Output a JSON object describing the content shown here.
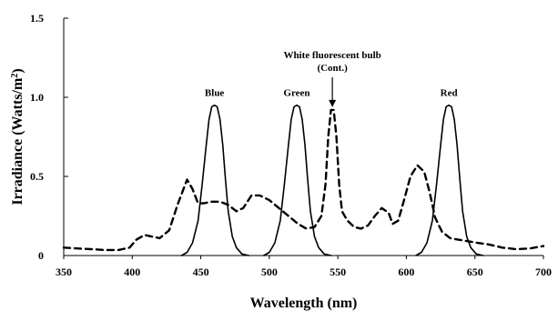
{
  "chart_data": {
    "type": "line",
    "title": "",
    "xlabel": "Wavelength (nm)",
    "ylabel_main": "Irradiance (Watts/m",
    "ylabel_sup": "2",
    "ylabel_end": ")",
    "xlim": [
      350,
      700
    ],
    "ylim": [
      0,
      1.5
    ],
    "xticks": [
      350,
      400,
      450,
      500,
      550,
      600,
      650,
      700
    ],
    "xtick_labels": [
      "350",
      "400",
      "450",
      "500",
      "550",
      "600",
      "650",
      "700"
    ],
    "yticks": [
      0,
      0.5,
      1.0,
      1.5
    ],
    "ytick_labels": [
      "0",
      "0.5",
      "1.0",
      "1.5"
    ],
    "grid": false,
    "series": [
      {
        "name": "White fluorescent bulb (Cont.)",
        "style": "dashed",
        "color": "#000000",
        "x": [
          350,
          360,
          370,
          380,
          390,
          398,
          403,
          409,
          414,
          420,
          427,
          433,
          440,
          444,
          448,
          452,
          458,
          464,
          470,
          476,
          481,
          487,
          493,
          500,
          507,
          514,
          521,
          527,
          533,
          538,
          541,
          543,
          545,
          547,
          549,
          551,
          553,
          557,
          562,
          567,
          572,
          577,
          582,
          587,
          590,
          594,
          598,
          603,
          608,
          613,
          617,
          621,
          626,
          632,
          638,
          645,
          652,
          660,
          670,
          680,
          690,
          700
        ],
        "y": [
          0.05,
          0.045,
          0.04,
          0.035,
          0.035,
          0.05,
          0.1,
          0.13,
          0.12,
          0.11,
          0.16,
          0.32,
          0.48,
          0.42,
          0.33,
          0.33,
          0.34,
          0.34,
          0.32,
          0.28,
          0.3,
          0.38,
          0.38,
          0.35,
          0.3,
          0.25,
          0.2,
          0.17,
          0.18,
          0.25,
          0.45,
          0.75,
          0.92,
          0.92,
          0.75,
          0.45,
          0.28,
          0.22,
          0.18,
          0.17,
          0.19,
          0.25,
          0.3,
          0.27,
          0.2,
          0.22,
          0.34,
          0.5,
          0.57,
          0.53,
          0.4,
          0.24,
          0.15,
          0.11,
          0.1,
          0.09,
          0.08,
          0.07,
          0.05,
          0.04,
          0.045,
          0.06
        ]
      },
      {
        "name": "Blue",
        "style": "solid",
        "color": "#000000",
        "peak_x": 460,
        "peak_y": 0.95,
        "x": [
          436,
          440,
          444,
          448,
          451,
          454,
          456,
          458,
          460,
          462,
          464,
          466,
          468,
          470,
          473,
          476,
          480,
          485
        ],
        "y": [
          0,
          0.02,
          0.08,
          0.22,
          0.45,
          0.7,
          0.86,
          0.94,
          0.95,
          0.94,
          0.86,
          0.7,
          0.48,
          0.28,
          0.12,
          0.05,
          0.01,
          0
        ]
      },
      {
        "name": "Green",
        "style": "solid",
        "color": "#000000",
        "peak_x": 520,
        "peak_y": 0.95,
        "x": [
          496,
          500,
          504,
          508,
          511,
          514,
          516,
          518,
          520,
          522,
          524,
          526,
          528,
          530,
          533,
          536,
          540,
          545
        ],
        "y": [
          0,
          0.02,
          0.08,
          0.22,
          0.45,
          0.7,
          0.86,
          0.94,
          0.95,
          0.94,
          0.86,
          0.7,
          0.48,
          0.28,
          0.12,
          0.05,
          0.01,
          0
        ]
      },
      {
        "name": "Red",
        "style": "solid",
        "color": "#000000",
        "peak_x": 631,
        "peak_y": 0.95,
        "x": [
          607,
          611,
          615,
          619,
          622,
          625,
          627,
          629,
          631,
          633,
          635,
          637,
          639,
          641,
          644,
          647,
          651,
          656
        ],
        "y": [
          0,
          0.02,
          0.08,
          0.22,
          0.45,
          0.7,
          0.86,
          0.94,
          0.95,
          0.94,
          0.86,
          0.7,
          0.48,
          0.28,
          0.12,
          0.05,
          0.01,
          0
        ]
      }
    ],
    "annotations": {
      "blue": "Blue",
      "green": "Green",
      "red": "Red",
      "white_line1": "White fluorescent bulb",
      "white_line2": "(Cont.)"
    }
  }
}
